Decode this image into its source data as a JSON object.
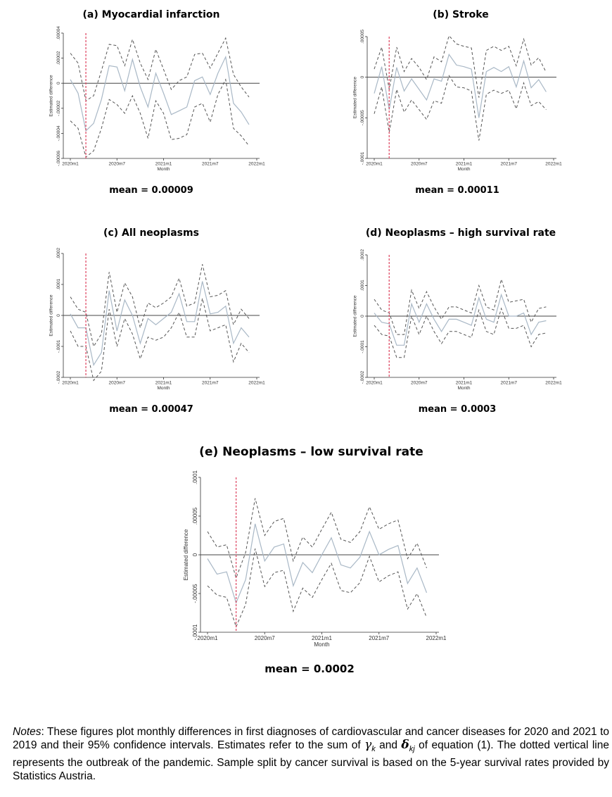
{
  "chart_data": [
    {
      "type": "line",
      "panel": "a",
      "title": "(a)  Myocardial infarction",
      "ylabel": "Estimated difference",
      "xlabel": "Month",
      "yticks": [
        {
          "value": 4e-05,
          "label": ".00004"
        },
        {
          "value": 2e-05,
          "label": ".00002"
        },
        {
          "value": 0,
          "label": "0"
        },
        {
          "value": -2e-05,
          "label": "-.00002"
        },
        {
          "value": -4e-05,
          "label": "-.00004"
        },
        {
          "value": -6e-05,
          "label": "-.00006"
        }
      ],
      "ylim": [
        -6e-05,
        4e-05
      ],
      "xlim": [
        0,
        24
      ],
      "xticks": [
        {
          "value": 0,
          "label": "2020m1"
        },
        {
          "value": 6,
          "label": "2020m7"
        },
        {
          "value": 12,
          "label": "2021m1"
        },
        {
          "value": 18,
          "label": "2021m7"
        },
        {
          "value": 24,
          "label": "2022m1"
        }
      ],
      "outbreak_x": 2,
      "x": [
        0,
        1,
        2,
        3,
        4,
        5,
        6,
        7,
        8,
        9,
        10,
        11,
        12,
        13,
        14,
        15,
        16,
        17,
        18,
        19,
        20,
        21,
        22,
        23
      ],
      "series": [
        {
          "name": "estimate",
          "values": [
            3e-06,
            -8e-06,
            -3.8e-05,
            -3.2e-05,
            -1.3e-05,
            1.4e-05,
            1.3e-05,
            -6e-06,
            1.9e-05,
            -3e-06,
            -1.9e-05,
            8e-06,
            -8e-06,
            -2.5e-05,
            -2.2e-05,
            -1.9e-05,
            2e-06,
            5e-06,
            -9e-06,
            8e-06,
            2.1e-05,
            -1.6e-05,
            -2.3e-05,
            -3.3e-05
          ]
        },
        {
          "name": "upper 95% CI",
          "values": [
            2.4e-05,
            1.6e-05,
            -1.4e-05,
            -1e-05,
            1e-05,
            3.1e-05,
            3e-05,
            1.4e-05,
            3.5e-05,
            1.6e-05,
            3e-06,
            2.7e-05,
            1.1e-05,
            -5e-06,
            2e-06,
            5e-06,
            2.3e-05,
            2.4e-05,
            1.2e-05,
            2.4e-05,
            3.6e-05,
            7e-06,
            -3e-06,
            -1.1e-05
          ]
        },
        {
          "name": "lower 95% CI",
          "values": [
            -3e-05,
            -3.6e-05,
            -5.9e-05,
            -5.4e-05,
            -3.6e-05,
            -1.3e-05,
            -1.7e-05,
            -2.4e-05,
            -1e-05,
            -2.4e-05,
            -4.4e-05,
            -1.4e-05,
            -2.4e-05,
            -4.5e-05,
            -4.4e-05,
            -4.1e-05,
            -1.9e-05,
            -1.6e-05,
            -3.1e-05,
            -9e-06,
            3e-06,
            -3.6e-05,
            -4.2e-05,
            -5e-05
          ]
        }
      ],
      "mean_label": "mean = 0.00009"
    },
    {
      "type": "line",
      "panel": "b",
      "title": "(b)  Stroke",
      "ylabel": "Estimated difference",
      "xlabel": "Month",
      "yticks": [
        {
          "value": 5e-05,
          "label": ".00005"
        },
        {
          "value": 0,
          "label": "0"
        },
        {
          "value": -5e-05,
          "label": "-.00005"
        },
        {
          "value": -0.0001,
          "label": "-.0001"
        }
      ],
      "ylim": [
        -0.0001,
        5e-05
      ],
      "xlim": [
        0,
        24
      ],
      "xticks": [
        {
          "value": 0,
          "label": "2020m1"
        },
        {
          "value": 6,
          "label": "2020m7"
        },
        {
          "value": 12,
          "label": "2021m1"
        },
        {
          "value": 18,
          "label": "2021m7"
        },
        {
          "value": 24,
          "label": "2022m1"
        }
      ],
      "outbreak_x": 2,
      "x": [
        0,
        1,
        2,
        3,
        4,
        5,
        6,
        7,
        8,
        9,
        10,
        11,
        12,
        13,
        14,
        15,
        16,
        17,
        18,
        19,
        20,
        21,
        22,
        23
      ],
      "series": [
        {
          "name": "estimate",
          "values": [
            -2e-05,
            1.3e-05,
            -4e-05,
            1.2e-05,
            -1.7e-05,
            -2e-06,
            -1.5e-05,
            -2.8e-05,
            -2e-06,
            -5e-06,
            2.8e-05,
            1.5e-05,
            1.3e-05,
            1e-05,
            -5e-05,
            7e-06,
            1.2e-05,
            7e-06,
            1.3e-05,
            -1.2e-05,
            2e-05,
            -1.3e-05,
            -3e-06,
            -1.8e-05
          ]
        },
        {
          "name": "upper 95% CI",
          "values": [
            1e-05,
            3.7e-05,
            -1.5e-05,
            3.7e-05,
            7e-06,
            2.3e-05,
            1.2e-05,
            -3e-06,
            2.5e-05,
            1.9e-05,
            5.1e-05,
            4.1e-05,
            3.8e-05,
            3.6e-05,
            -2.5e-05,
            3.3e-05,
            3.8e-05,
            3.3e-05,
            3.8e-05,
            1.4e-05,
            4.7e-05,
            1.5e-05,
            2.4e-05,
            6e-06
          ]
        },
        {
          "name": "lower 95% CI",
          "values": [
            -4.5e-05,
            -1.2e-05,
            -6.8e-05,
            -1.5e-05,
            -4.3e-05,
            -2.8e-05,
            -4e-05,
            -5.2e-05,
            -2.9e-05,
            -3.2e-05,
            2e-06,
            -1.2e-05,
            -1.3e-05,
            -1.7e-05,
            -7.8e-05,
            -2.1e-05,
            -1.6e-05,
            -2e-05,
            -1.6e-05,
            -3.9e-05,
            -7e-06,
            -3.5e-05,
            -3e-05,
            -4e-05
          ]
        }
      ],
      "mean_label": "mean = 0.00011"
    },
    {
      "type": "line",
      "panel": "c",
      "title": "(c)  All  neoplasms",
      "ylabel": "Estimated difference",
      "xlabel": "Month",
      "yticks": [
        {
          "value": 0.0002,
          "label": ".0002"
        },
        {
          "value": 0.0001,
          "label": ".0001"
        },
        {
          "value": 0,
          "label": "0"
        },
        {
          "value": -0.0001,
          "label": "-.0001"
        },
        {
          "value": -0.0002,
          "label": "-.0002"
        }
      ],
      "ylim": [
        -0.0002,
        0.0002
      ],
      "xlim": [
        0,
        24
      ],
      "xticks": [
        {
          "value": 0,
          "label": "2020m1"
        },
        {
          "value": 6,
          "label": "2020m7"
        },
        {
          "value": 12,
          "label": "2021m1"
        },
        {
          "value": 18,
          "label": "2021m7"
        },
        {
          "value": 24,
          "label": "2022m1"
        }
      ],
      "outbreak_x": 2,
      "x": [
        0,
        1,
        2,
        3,
        4,
        5,
        6,
        7,
        8,
        9,
        10,
        11,
        12,
        13,
        14,
        15,
        16,
        17,
        18,
        19,
        20,
        21,
        22,
        23
      ],
      "series": [
        {
          "name": "estimate",
          "values": [
            5e-06,
            -4e-05,
            -4e-05,
            -0.00016,
            -0.00012,
            8e-05,
            -5e-05,
            5e-05,
            0.0,
            -9e-05,
            -1e-05,
            -3e-05,
            -1e-05,
            1e-05,
            7e-05,
            -2e-05,
            -2e-05,
            0.00011,
            5e-06,
            1e-05,
            3e-05,
            -9e-05,
            -4e-05,
            -7e-05
          ]
        },
        {
          "name": "upper 95% CI",
          "values": [
            6e-05,
            2e-05,
            1e-05,
            -0.0001,
            -6e-05,
            0.00014,
            1e-05,
            0.000105,
            6e-05,
            -4e-05,
            4e-05,
            2.5e-05,
            4e-05,
            6e-05,
            0.00012,
            3e-05,
            4e-05,
            0.000165,
            6e-05,
            6.5e-05,
            8e-05,
            -3e-05,
            2e-05,
            -1e-05
          ]
        },
        {
          "name": "lower 95% CI",
          "values": [
            -5e-05,
            -0.0001,
            -0.0001,
            -0.00021,
            -0.00018,
            2e-05,
            -0.0001,
            -1e-05,
            -6e-05,
            -0.00014,
            -7e-05,
            -8e-05,
            -7e-05,
            -4e-05,
            1e-05,
            -7e-05,
            -7e-05,
            5.5e-05,
            -5e-05,
            -4e-05,
            -3e-05,
            -0.00015,
            -9e-05,
            -0.00012
          ]
        }
      ],
      "mean_label": "mean = 0.00047"
    },
    {
      "type": "line",
      "panel": "d",
      "title": "(d)  Neoplasms – high survival rate",
      "ylabel": "Estimated difference",
      "xlabel": "Month",
      "yticks": [
        {
          "value": 0.0002,
          "label": ".0002"
        },
        {
          "value": 0.0001,
          "label": ".0001"
        },
        {
          "value": 0,
          "label": "0"
        },
        {
          "value": -0.0001,
          "label": "-.0001"
        },
        {
          "value": -0.0002,
          "label": "-.0002"
        }
      ],
      "ylim": [
        -0.0002,
        0.0002
      ],
      "xlim": [
        0,
        24
      ],
      "xticks": [
        {
          "value": 0,
          "label": "2020m1"
        },
        {
          "value": 6,
          "label": "2020m7"
        },
        {
          "value": 12,
          "label": "2021m1"
        },
        {
          "value": 18,
          "label": "2021m7"
        },
        {
          "value": 24,
          "label": "2022m1"
        }
      ],
      "outbreak_x": 2,
      "x": [
        0,
        1,
        2,
        3,
        4,
        5,
        6,
        7,
        8,
        9,
        10,
        11,
        12,
        13,
        14,
        15,
        16,
        17,
        18,
        19,
        20,
        21,
        22,
        23
      ],
      "series": [
        {
          "name": "estimate",
          "values": [
            1e-05,
            -2e-05,
            -2.5e-05,
            -9.5e-05,
            -9.5e-05,
            4e-05,
            -2e-05,
            4e-05,
            -1e-05,
            -5e-05,
            -1e-05,
            -1e-05,
            -2e-05,
            -3e-05,
            6e-05,
            -1e-05,
            -2e-05,
            7e-05,
            0.0,
            0.0,
            1e-05,
            -6e-05,
            -2e-05,
            -1.5e-05
          ]
        },
        {
          "name": "upper 95% CI",
          "values": [
            5.5e-05,
            2e-05,
            1e-05,
            -6e-05,
            -6e-05,
            8.5e-05,
            2.5e-05,
            8e-05,
            3e-05,
            -1e-05,
            3e-05,
            3e-05,
            2e-05,
            1e-05,
            0.0001,
            3e-05,
            2e-05,
            0.00012,
            4.5e-05,
            5e-05,
            5.5e-05,
            -2e-05,
            2.5e-05,
            3e-05
          ]
        },
        {
          "name": "lower 95% CI",
          "values": [
            -3e-05,
            -6e-05,
            -6.5e-05,
            -0.000135,
            -0.000135,
            0.0,
            -6e-05,
            0.0,
            -5e-05,
            -9e-05,
            -5e-05,
            -5e-05,
            -6e-05,
            -7e-05,
            2e-05,
            -5e-05,
            -6e-05,
            2.5e-05,
            -4e-05,
            -4e-05,
            -3e-05,
            -0.0001,
            -6e-05,
            -5.5e-05
          ]
        }
      ],
      "mean_label": "mean = 0.0003"
    },
    {
      "type": "line",
      "panel": "e",
      "title": "(e)  Neoplasms – low survival rate",
      "ylabel": "Estimated difference",
      "xlabel": "Month",
      "yticks": [
        {
          "value": 0.0001,
          "label": ".0001"
        },
        {
          "value": 5e-05,
          "label": ".00005"
        },
        {
          "value": 0,
          "label": "0"
        },
        {
          "value": -5e-05,
          "label": "-.00005"
        },
        {
          "value": -0.0001,
          "label": "-.0001"
        }
      ],
      "ylim": [
        -0.0001,
        0.0001
      ],
      "xlim": [
        0,
        24
      ],
      "xticks": [
        {
          "value": 0,
          "label": "2020m1"
        },
        {
          "value": 6,
          "label": "2020m7"
        },
        {
          "value": 12,
          "label": "2021m1"
        },
        {
          "value": 18,
          "label": "2021m7"
        },
        {
          "value": 24,
          "label": "2022m1"
        }
      ],
      "outbreak_x": 3,
      "x": [
        0,
        1,
        2,
        3,
        4,
        5,
        6,
        7,
        8,
        9,
        10,
        11,
        12,
        13,
        14,
        15,
        16,
        17,
        18,
        19,
        20,
        21,
        22,
        23
      ],
      "series": [
        {
          "name": "estimate",
          "values": [
            -5e-06,
            -2.5e-05,
            -2.2e-05,
            -6.2e-05,
            -3.2e-05,
            4e-05,
            -8e-06,
            1e-05,
            1.4e-05,
            -4e-05,
            -1e-05,
            -2.3e-05,
            0.0,
            2.2e-05,
            -1.3e-05,
            -1.7e-05,
            -3e-06,
            3e-05,
            0.0,
            7e-06,
            1.2e-05,
            -3.7e-05,
            -1.7e-05,
            -4.9e-05
          ]
        },
        {
          "name": "upper 95% CI",
          "values": [
            3e-05,
            1e-05,
            1.3e-05,
            -3e-05,
            3e-06,
            7.3e-05,
            2.5e-05,
            4.3e-05,
            4.7e-05,
            -8e-06,
            2.3e-05,
            1e-05,
            3.3e-05,
            5.5e-05,
            2e-05,
            1.6e-05,
            3e-05,
            6.2e-05,
            3.3e-05,
            4e-05,
            4.5e-05,
            -5e-06,
            1.5e-05,
            -1.7e-05
          ]
        },
        {
          "name": "lower 95% CI",
          "values": [
            -4e-05,
            -5.2e-05,
            -5.5e-05,
            -9.3e-05,
            -6.4e-05,
            8e-06,
            -4.1e-05,
            -2.3e-05,
            -2e-05,
            -7.3e-05,
            -4.3e-05,
            -5.5e-05,
            -3.2e-05,
            -1.1e-05,
            -4.6e-05,
            -4.9e-05,
            -3.6e-05,
            -2e-06,
            -3.5e-05,
            -2.7e-05,
            -2.2e-05,
            -7e-05,
            -5e-05,
            -8.1e-05
          ]
        }
      ],
      "mean_label": "mean = 0.0002"
    }
  ],
  "notes": {
    "lead": "Notes",
    "body": ": These figures plot monthly differences in first diagnoses of cardiovascular and cancer diseases for 2020 and 2021 to 2019 and their 95% confidence intervals. Estimates refer to the sum of ",
    "gamma": "γ",
    "gamma_sub": "k",
    "and": " and ",
    "delta": "δ",
    "delta_sub": "kj",
    "body2": " of equation (1). The dotted vertical line represents the outbreak of the pandemic. Sample split by cancer survival is based on the 5-year survival rates provided by Statistics Austria."
  },
  "colors": {
    "estimate": "#a9b8c6",
    "ci": "#555555",
    "outbreak": "#e0506a",
    "axis": "#333333"
  }
}
